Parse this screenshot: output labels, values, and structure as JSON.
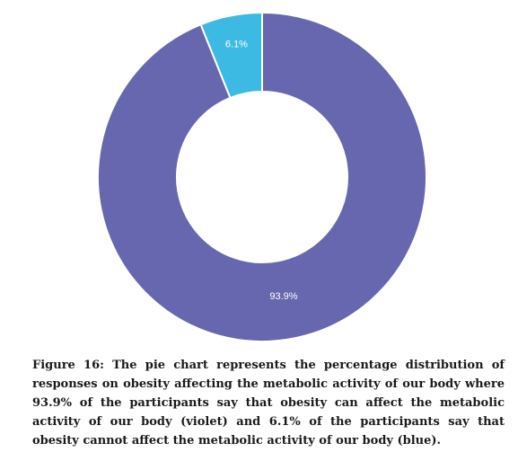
{
  "chart_data": {
    "type": "pie",
    "variant": "donut",
    "slices": [
      {
        "label": "93.9%",
        "value": 93.9,
        "color": "#6667AF"
      },
      {
        "label": "6.1%",
        "value": 6.1,
        "color": "#3CBAE3"
      }
    ],
    "legend": "none",
    "title": ""
  },
  "caption": {
    "text": "Figure 16: The pie chart represents the percentage distribution of responses on obesity affecting the metabolic activity of our body where 93.9% of the participants say that obesity can affect the metabolic activity of our body (violet) and 6.1% of the participants say that obesity cannot affect the metabolic activity of our body (blue)."
  }
}
